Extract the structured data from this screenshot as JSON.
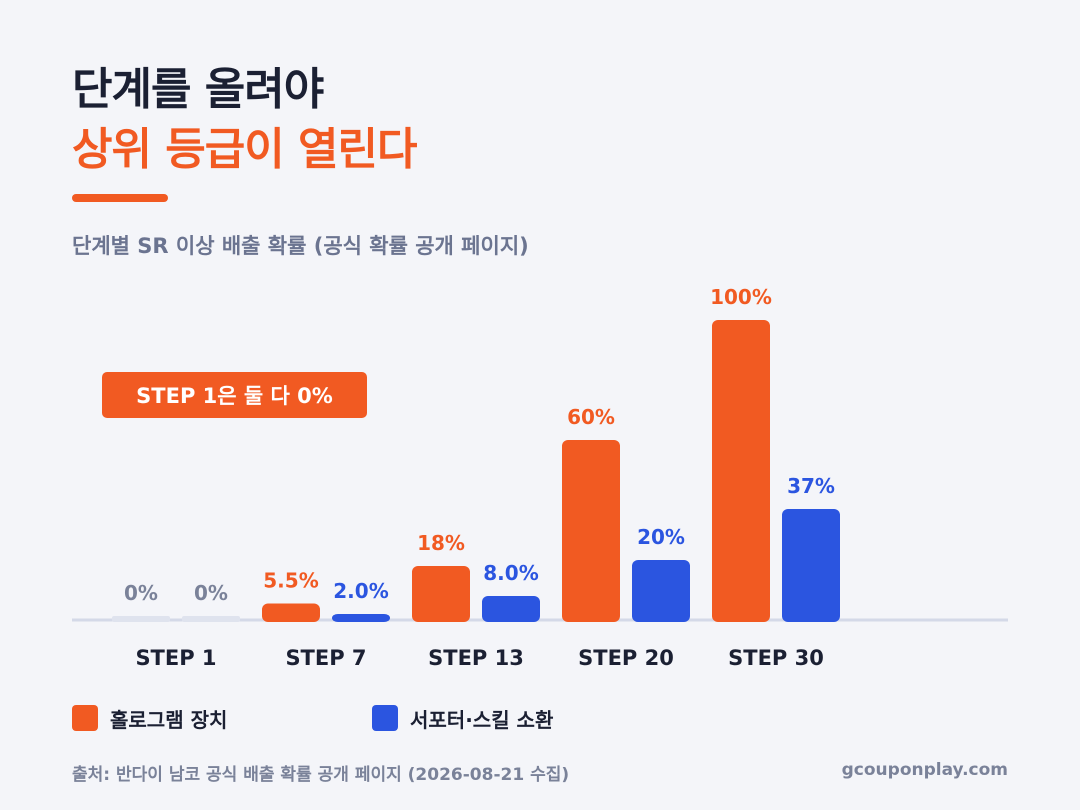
{
  "title": {
    "line1": "단계를 올려야",
    "line2": "상위 등급이 열린다"
  },
  "subtitle": "단계별 SR 이상 배출 확률 (공식 확률 공개 페이지)",
  "callout": "STEP 1은 둘 다 0%",
  "footer": {
    "source": "출처: 반다이 남코 공식 배출 확률 공개 페이지 (2026-08-21 수집)",
    "site": "gcouponplay.com"
  },
  "colors": {
    "series_a": "#f15a22",
    "series_b": "#2b55e0",
    "zero": "#dfe3ee",
    "zero_label": "#7a8299",
    "axis": "#d4d9e8"
  },
  "chart_data": {
    "type": "bar",
    "categories": [
      "STEP 1",
      "STEP 7",
      "STEP 13",
      "STEP 20",
      "STEP 30"
    ],
    "series": [
      {
        "name": "홀로그램 장치",
        "values": [
          0,
          5.5,
          18,
          60,
          100
        ],
        "labels": [
          "0%",
          "5.5%",
          "18%",
          "60%",
          "100%"
        ]
      },
      {
        "name": "서포터·스킬 소환",
        "values": [
          0,
          2.0,
          8.0,
          20,
          37
        ],
        "labels": [
          "0%",
          "2.0%",
          "8.0%",
          "20%",
          "37%"
        ]
      }
    ],
    "ylim": [
      0,
      100
    ],
    "unit": "%",
    "grid": false,
    "legend": "bottom-left"
  }
}
